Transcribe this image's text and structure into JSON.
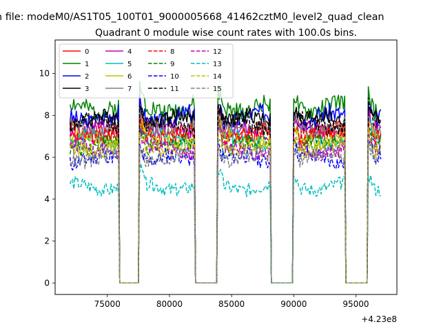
{
  "chart_data": {
    "type": "line",
    "suptitle": "n file: modeM0/AS1T05_100T01_9000005668_41462cztM0_level2_quad_clean",
    "title": "Quadrant 0 module wise count rates with 100.0s bins.",
    "xlabel": "",
    "ylabel": "",
    "x_offset_label": "+4.23e8",
    "xlim": [
      70800,
      98300
    ],
    "ylim": [
      -0.55,
      11.6
    ],
    "x_ticks": [
      75000,
      80000,
      85000,
      90000,
      95000
    ],
    "x_tick_labels": [
      "75000",
      "80000",
      "85000",
      "90000",
      "95000"
    ],
    "y_ticks": [
      0,
      2,
      4,
      6,
      8,
      10
    ],
    "y_tick_labels": [
      "0",
      "2",
      "4",
      "6",
      "8",
      "10"
    ],
    "grid": false,
    "legend_position": "top-left",
    "bin_seconds": 100,
    "x_start": 72000,
    "x_end": 97000,
    "gaps": [
      [
        76000,
        77500
      ],
      [
        82100,
        83800
      ],
      [
        88200,
        89900
      ],
      [
        94200,
        95900
      ]
    ],
    "series": [
      {
        "name": "0",
        "color": "#ff0000",
        "dash": "solid",
        "level": 7.3,
        "amp": 0.35,
        "seed": 1
      },
      {
        "name": "1",
        "color": "#008000",
        "dash": "solid",
        "level": 8.4,
        "amp": 0.4,
        "seed": 2
      },
      {
        "name": "2",
        "color": "#0000ff",
        "dash": "solid",
        "level": 7.9,
        "amp": 0.4,
        "seed": 3
      },
      {
        "name": "3",
        "color": "#000000",
        "dash": "solid",
        "level": 7.8,
        "amp": 0.35,
        "seed": 4
      },
      {
        "name": "4",
        "color": "#bf00bf",
        "dash": "solid",
        "level": 7.2,
        "amp": 0.35,
        "seed": 5
      },
      {
        "name": "5",
        "color": "#00bfbf",
        "dash": "solid",
        "level": 6.8,
        "amp": 0.35,
        "seed": 6
      },
      {
        "name": "6",
        "color": "#bfbf00",
        "dash": "solid",
        "level": 6.9,
        "amp": 0.35,
        "seed": 7
      },
      {
        "name": "7",
        "color": "#808080",
        "dash": "solid",
        "level": 7.4,
        "amp": 0.35,
        "seed": 8
      },
      {
        "name": "8",
        "color": "#ff0000",
        "dash": "dashed",
        "level": 7.1,
        "amp": 0.35,
        "seed": 9
      },
      {
        "name": "9",
        "color": "#008000",
        "dash": "dashed",
        "level": 6.6,
        "amp": 0.35,
        "seed": 10
      },
      {
        "name": "10",
        "color": "#0000ff",
        "dash": "dashed",
        "level": 5.9,
        "amp": 0.35,
        "seed": 11
      },
      {
        "name": "11",
        "color": "#000000",
        "dash": "dashed",
        "level": 7.6,
        "amp": 0.35,
        "seed": 12
      },
      {
        "name": "12",
        "color": "#bf00bf",
        "dash": "dashed",
        "level": 6.4,
        "amp": 0.35,
        "seed": 13
      },
      {
        "name": "13",
        "color": "#00bfbf",
        "dash": "dashed",
        "level": 4.6,
        "amp": 0.3,
        "seed": 14
      },
      {
        "name": "14",
        "color": "#bfbf00",
        "dash": "dashed",
        "level": 6.5,
        "amp": 0.35,
        "seed": 15
      },
      {
        "name": "15",
        "color": "#808080",
        "dash": "dashed",
        "level": 6.0,
        "amp": 0.35,
        "seed": 16
      }
    ]
  }
}
